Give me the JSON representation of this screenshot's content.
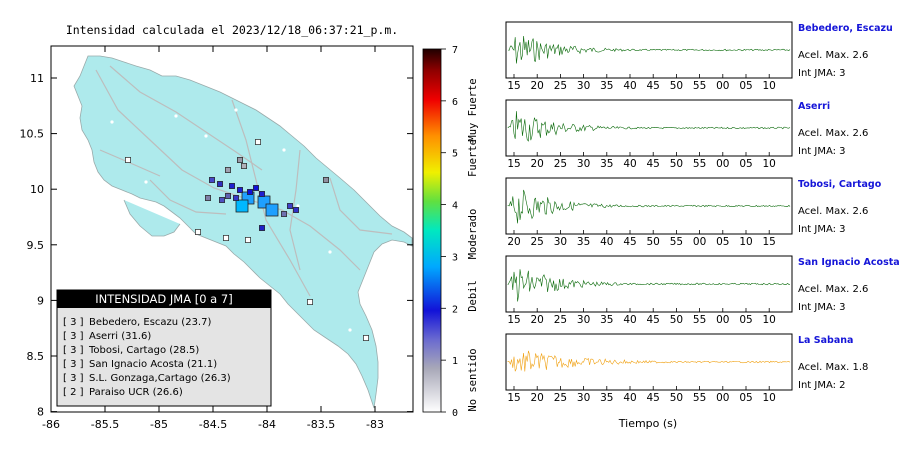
{
  "map": {
    "title": "Intensidad calculada el 2023/12/18_06:37:21_p.m.",
    "x_ticks": [
      "-86",
      "-85.5",
      "-85",
      "-84.5",
      "-84",
      "-83.5",
      "-83"
    ],
    "y_ticks": [
      "11",
      "10.5",
      "10",
      "9.5",
      "9",
      "8.5",
      "8"
    ],
    "legend": {
      "title": "INTENSIDAD JMA [0 a 7]",
      "items": [
        {
          "level": "[ 3 ]",
          "name": "Bebedero, Escazu (23.7)"
        },
        {
          "level": "[ 3 ]",
          "name": "Aserri (31.6)"
        },
        {
          "level": "[ 3 ]",
          "name": "Tobosi, Cartago (28.5)"
        },
        {
          "level": "[ 3 ]",
          "name": "San Ignacio Acosta (21.1)"
        },
        {
          "level": "[ 3 ]",
          "name": "S.L. Gonzaga,Cartago (26.3)"
        },
        {
          "level": "[ 2 ]",
          "name": "Paraiso UCR (26.6)"
        }
      ]
    },
    "colorbar": {
      "ticks": [
        "7",
        "6",
        "5",
        "4",
        "3",
        "2",
        "1",
        "0"
      ],
      "labels": [
        "Muy Fuerte",
        "Fuerte",
        "Moderado",
        "Debil",
        "No sentido"
      ]
    },
    "land_color": "#aeeaec"
  },
  "waveforms": {
    "xlabel": "Tiempo (s)",
    "panels": [
      {
        "station": "Bebedero, Escazu",
        "acel": "Acel. Max. 2.6",
        "int": "Int JMA: 3",
        "ticks": [
          "15",
          "20",
          "25",
          "30",
          "35",
          "40",
          "45",
          "50",
          "55",
          "00",
          "05",
          "10"
        ],
        "color": "#0a6a0a"
      },
      {
        "station": "Aserri",
        "acel": "Acel. Max. 2.6",
        "int": "Int JMA: 3",
        "ticks": [
          "15",
          "20",
          "25",
          "30",
          "35",
          "40",
          "45",
          "50",
          "55",
          "00",
          "05",
          "10"
        ],
        "color": "#0a6a0a"
      },
      {
        "station": "Tobosi, Cartago",
        "acel": "Acel. Max. 2.6",
        "int": "Int JMA: 3",
        "ticks": [
          "20",
          "25",
          "30",
          "35",
          "40",
          "45",
          "50",
          "55",
          "00",
          "05",
          "10",
          "15"
        ],
        "color": "#0a6a0a"
      },
      {
        "station": "San Ignacio Acosta",
        "acel": "Acel. Max. 2.6",
        "int": "Int JMA: 3",
        "ticks": [
          "15",
          "20",
          "25",
          "30",
          "35",
          "40",
          "45",
          "50",
          "55",
          "00",
          "05",
          "10"
        ],
        "color": "#0a6a0a"
      },
      {
        "station": "La Sabana",
        "acel": "Acel. Max. 1.8",
        "int": "Int JMA: 2",
        "ticks": [
          "15",
          "20",
          "25",
          "30",
          "35",
          "40",
          "45",
          "50",
          "55",
          "00",
          "05",
          "10"
        ],
        "color": "#f0a010"
      }
    ]
  }
}
